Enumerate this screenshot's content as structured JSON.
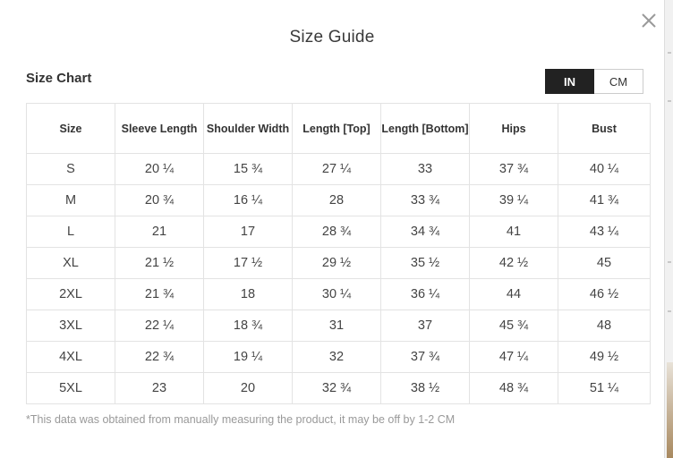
{
  "modal": {
    "title": "Size Guide",
    "close_icon": "close-icon"
  },
  "chart": {
    "subtitle": "Size Chart",
    "units": [
      {
        "label": "IN",
        "active": true
      },
      {
        "label": "CM",
        "active": false
      }
    ],
    "columns": [
      "Size",
      "Sleeve Length",
      "Shoulder Width",
      "Length [Top]",
      "Length [Bottom]",
      "Hips",
      "Bust"
    ],
    "rows": [
      [
        "S",
        "20 ¼",
        "15 ¾",
        "27 ¼",
        "33",
        "37 ¾",
        "40 ¼"
      ],
      [
        "M",
        "20 ¾",
        "16 ¼",
        "28",
        "33 ¾",
        "39 ¼",
        "41 ¾"
      ],
      [
        "L",
        "21",
        "17",
        "28 ¾",
        "34 ¾",
        "41",
        "43 ¼"
      ],
      [
        "XL",
        "21 ½",
        "17 ½",
        "29 ½",
        "35 ½",
        "42 ½",
        "45"
      ],
      [
        "2XL",
        "21 ¾",
        "18",
        "30 ¼",
        "36 ¼",
        "44",
        "46 ½"
      ],
      [
        "3XL",
        "22 ¼",
        "18 ¾",
        "31",
        "37",
        "45 ¾",
        "48"
      ],
      [
        "4XL",
        "22 ¾",
        "19 ¼",
        "32",
        "37 ¾",
        "47 ¼",
        "49 ½"
      ],
      [
        "5XL",
        "23",
        "20",
        "32 ¾",
        "38 ½",
        "48 ¾",
        "51 ¼"
      ]
    ],
    "footnote": "*This data was obtained from manually measuring the product, it may be off by 1-2 CM"
  },
  "colors": {
    "active_toggle": "#222222",
    "border": "#e3e3e3",
    "footnote": "#999999"
  }
}
